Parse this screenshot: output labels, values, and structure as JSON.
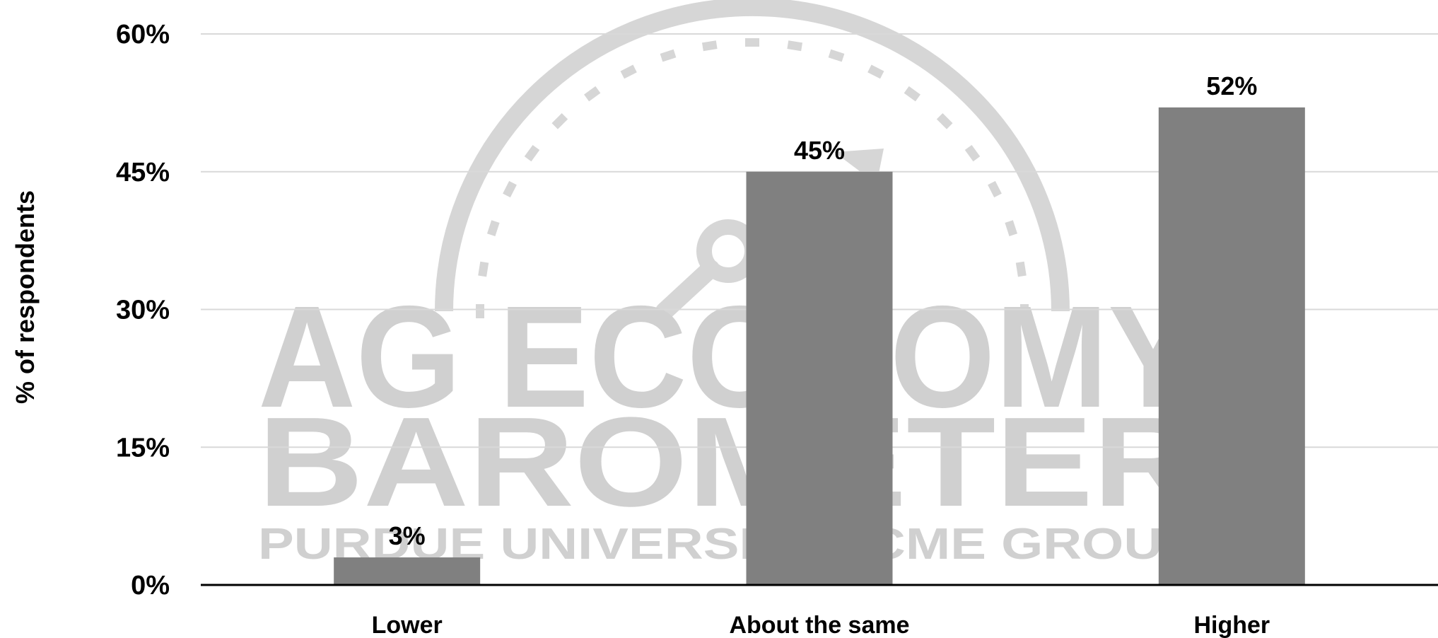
{
  "chart_data": {
    "type": "bar",
    "categories": [
      "Lower",
      "About the same",
      "Higher"
    ],
    "values": [
      3,
      45,
      52
    ],
    "data_labels": [
      "3%",
      "45%",
      "52%"
    ],
    "title": "",
    "xlabel": "",
    "ylabel": "% of respondents",
    "ylim": [
      0,
      60
    ],
    "yticks": [
      0,
      15,
      30,
      45,
      60
    ],
    "ytick_labels": [
      "0%",
      "15%",
      "30%",
      "45%",
      "60%"
    ],
    "grid": true,
    "legend": "none",
    "bar_color": "#808080",
    "gridline_color": "#d9d9d9",
    "axis_color": "#000000"
  },
  "watermark": {
    "line1": "AG ECONOMY",
    "line2": "BAROMETER",
    "line3": "PURDUE UNIVERSITY | CME GROUP",
    "color": "#d0d0d0",
    "icon": "barometer-gauge-icon"
  }
}
